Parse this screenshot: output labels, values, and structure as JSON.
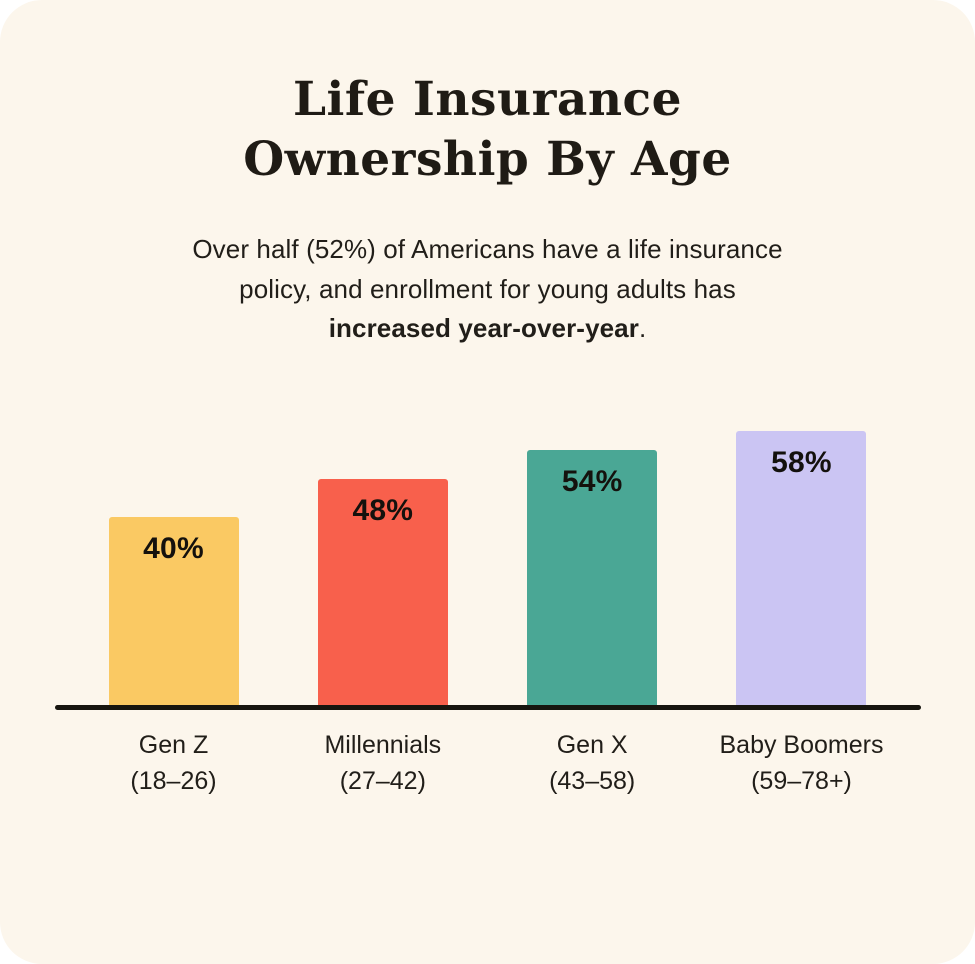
{
  "header": {
    "title_line1": "Life Insurance",
    "title_line2": "Ownership By Age",
    "subtitle_line1": "Over half (52%) of Americans have a life insurance",
    "subtitle_line2": "policy, and enrollment for young adults has",
    "subtitle_line3_bold": "increased year-over-year",
    "subtitle_line3_suffix": "."
  },
  "chart_data": {
    "type": "bar",
    "title": "Life Insurance Ownership By Age",
    "subtitle": "Over half (52%) of Americans have a life insurance policy, and enrollment for young adults has increased year-over-year.",
    "categories": [
      "Gen Z",
      "Millennials",
      "Gen X",
      "Baby Boomers"
    ],
    "values": [
      40,
      48,
      54,
      58
    ],
    "bars": [
      {
        "category": "Gen Z",
        "age_range": "(18–26)",
        "value": 40,
        "value_label": "40%",
        "color": "#FAC963"
      },
      {
        "category": "Millennials",
        "age_range": "(27–42)",
        "value": 48,
        "value_label": "48%",
        "color": "#F8604C"
      },
      {
        "category": "Gen X",
        "age_range": "(43–58)",
        "value": 54,
        "value_label": "54%",
        "color": "#4AA795"
      },
      {
        "category": "Baby Boomers",
        "age_range": "(59–78+)",
        "value": 58,
        "value_label": "58%",
        "color": "#CBC5F3"
      }
    ],
    "xlabel": "",
    "ylabel": "",
    "ylim": [
      0,
      60
    ],
    "grid": false,
    "legend": false,
    "value_labels_position": "inside-top",
    "baseline_color": "#17150F"
  },
  "colors": {
    "card_background": "#FCF6EC",
    "page_background": "#FFFFFF",
    "text": "#1F1B15"
  }
}
